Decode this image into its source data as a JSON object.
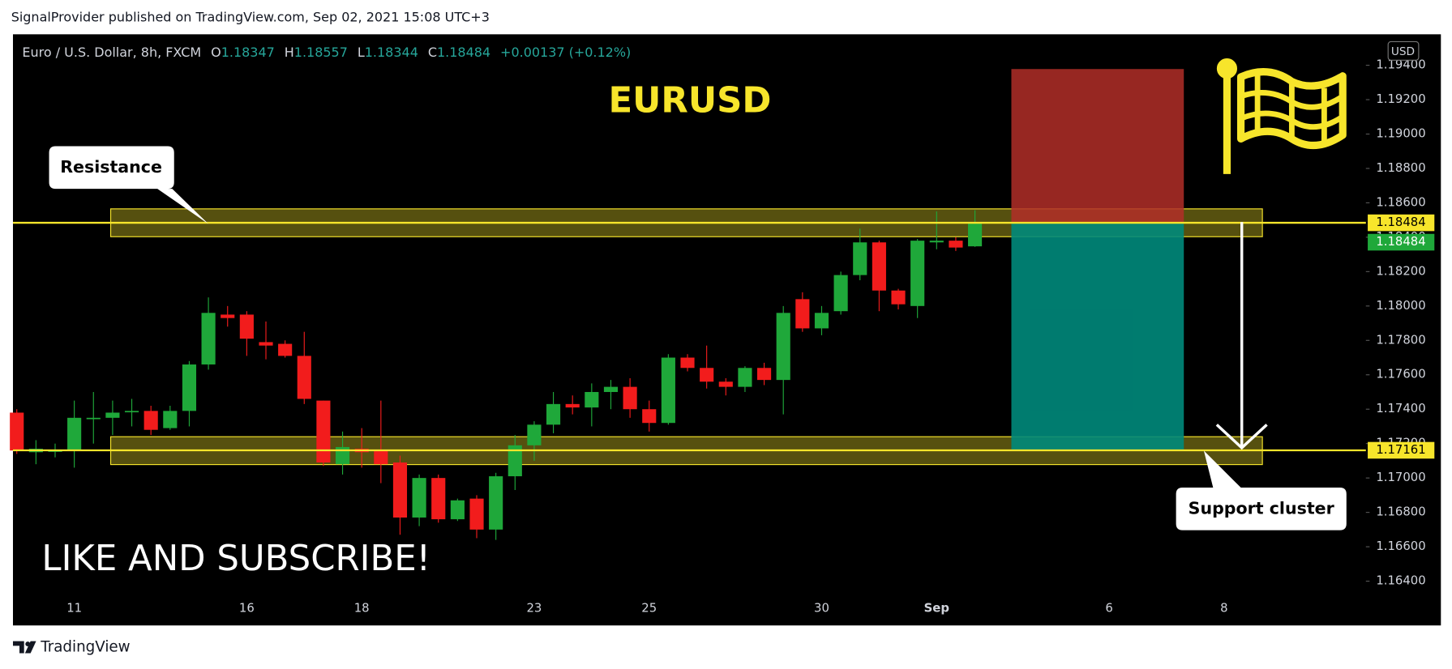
{
  "header": {
    "publisher": "SignalProvider published on TradingView.com, Sep 02, 2021 15:08 UTC+3"
  },
  "footer": {
    "brand": "TradingView"
  },
  "chart_data": {
    "type": "candlestick",
    "symbol": "Euro / U.S. Dollar, 8h, FXCM",
    "ohlc_labels": [
      "O",
      "H",
      "L",
      "C"
    ],
    "change": "+0.00137 (+0.12%)",
    "currency": "USD",
    "title": "EURUSD",
    "annotations": [
      "Resistance",
      "Support cluster",
      "LIKE AND SUBSCRIBE!"
    ],
    "colors": {
      "up": "#1fa83a",
      "down": "#f21c1c",
      "zone": "#f7e52b",
      "stop": "#b22e28",
      "target": "#00897b"
    },
    "open": [
      1.1738,
      1.1715,
      1.1716,
      1.1716,
      1.1735,
      1.1735,
      1.1739,
      1.1739,
      1.1729,
      1.1739,
      1.1766,
      1.1795,
      1.1795,
      1.1779,
      1.1778,
      1.1771,
      1.1745,
      1.1708,
      1.1717,
      1.1716,
      1.1709,
      1.1677,
      1.17,
      1.1676,
      1.1688,
      1.167,
      1.1701,
      1.1719,
      1.1731,
      1.1743,
      1.1741,
      1.175,
      1.1753,
      1.174,
      1.1732,
      1.177,
      1.1764,
      1.1756,
      1.1753,
      1.1764,
      1.1757,
      1.1804,
      1.1787,
      1.1797,
      1.1818,
      1.1837,
      1.1809,
      1.18,
      1.1837,
      1.1838,
      1.18347
    ],
    "high": [
      1.174,
      1.1722,
      1.172,
      1.1745,
      1.175,
      1.1745,
      1.1746,
      1.1742,
      1.1742,
      1.1768,
      1.1805,
      1.18,
      1.1797,
      1.1791,
      1.178,
      1.1785,
      1.1745,
      1.1727,
      1.1729,
      1.1745,
      1.1713,
      1.1702,
      1.1702,
      1.1688,
      1.169,
      1.1703,
      1.1725,
      1.1733,
      1.175,
      1.1748,
      1.1755,
      1.1757,
      1.1758,
      1.1745,
      1.1772,
      1.1772,
      1.1777,
      1.1758,
      1.1765,
      1.1767,
      1.18,
      1.1808,
      1.18,
      1.182,
      1.1845,
      1.1838,
      1.181,
      1.1839,
      1.1855,
      1.184,
      1.18557
    ],
    "low": [
      1.1714,
      1.1708,
      1.1712,
      1.1706,
      1.172,
      1.1725,
      1.173,
      1.1725,
      1.1728,
      1.173,
      1.1763,
      1.1788,
      1.1771,
      1.1769,
      1.177,
      1.1743,
      1.1707,
      1.1702,
      1.1706,
      1.1697,
      1.1667,
      1.1672,
      1.1674,
      1.1675,
      1.1665,
      1.1664,
      1.1693,
      1.171,
      1.1726,
      1.1737,
      1.173,
      1.174,
      1.1735,
      1.1727,
      1.1731,
      1.1762,
      1.1752,
      1.1748,
      1.175,
      1.1754,
      1.1737,
      1.1785,
      1.1783,
      1.1795,
      1.1815,
      1.1797,
      1.1798,
      1.1793,
      1.1833,
      1.1832,
      1.18344
    ],
    "close": [
      1.1716,
      1.1717,
      1.1716,
      1.1735,
      1.1735,
      1.1738,
      1.1739,
      1.1728,
      1.1739,
      1.1766,
      1.1796,
      1.1793,
      1.1781,
      1.1777,
      1.1771,
      1.1746,
      1.1709,
      1.1718,
      1.1715,
      1.1708,
      1.1677,
      1.17,
      1.1676,
      1.1687,
      1.167,
      1.1701,
      1.1719,
      1.1731,
      1.1743,
      1.1741,
      1.175,
      1.1753,
      1.174,
      1.1732,
      1.177,
      1.1764,
      1.1756,
      1.1753,
      1.1764,
      1.1757,
      1.1796,
      1.1787,
      1.1796,
      1.1818,
      1.1837,
      1.1809,
      1.1801,
      1.1838,
      1.1838,
      1.1834,
      1.18484
    ],
    "xlim": [
      -0.2,
      70.4
    ],
    "xticks": [
      {
        "value": 3,
        "label": "11"
      },
      {
        "value": 12,
        "label": "16"
      },
      {
        "value": 18,
        "label": "18"
      },
      {
        "value": 27,
        "label": "23"
      },
      {
        "value": 33,
        "label": "25"
      },
      {
        "value": 42,
        "label": "30"
      },
      {
        "value": 48,
        "label": "Sep"
      },
      {
        "value": 57,
        "label": "6"
      },
      {
        "value": 63,
        "label": "8"
      }
    ],
    "ylim": [
      1.1632,
      1.1958
    ],
    "yticks": [
      {
        "value": 1.194,
        "label": "1.19400"
      },
      {
        "value": 1.192,
        "label": "1.19200"
      },
      {
        "value": 1.19,
        "label": "1.19000"
      },
      {
        "value": 1.188,
        "label": "1.18800"
      },
      {
        "value": 1.186,
        "label": "1.18600"
      },
      {
        "value": 1.184,
        "label": "1.18400"
      },
      {
        "value": 1.182,
        "label": "1.18200"
      },
      {
        "value": 1.18,
        "label": "1.18000"
      },
      {
        "value": 1.178,
        "label": "1.17800"
      },
      {
        "value": 1.176,
        "label": "1.17600"
      },
      {
        "value": 1.174,
        "label": "1.17400"
      },
      {
        "value": 1.172,
        "label": "1.17200"
      },
      {
        "value": 1.17,
        "label": "1.17000"
      },
      {
        "value": 1.168,
        "label": "1.16800"
      },
      {
        "value": 1.166,
        "label": "1.16600"
      },
      {
        "value": 1.164,
        "label": "1.16400"
      }
    ],
    "zones": [
      {
        "x": [
          4.9,
          65
        ],
        "range": [
          1.18403,
          1.18565
        ]
      },
      {
        "x": [
          4.9,
          65
        ],
        "range": [
          1.17078,
          1.1724
        ]
      }
    ],
    "position": {
      "x": [
        51.9,
        60.9
      ],
      "stop": 1.19378,
      "entry": 1.18484,
      "target": 1.17161
    },
    "hlines": [
      1.18484,
      1.17161
    ]
  }
}
